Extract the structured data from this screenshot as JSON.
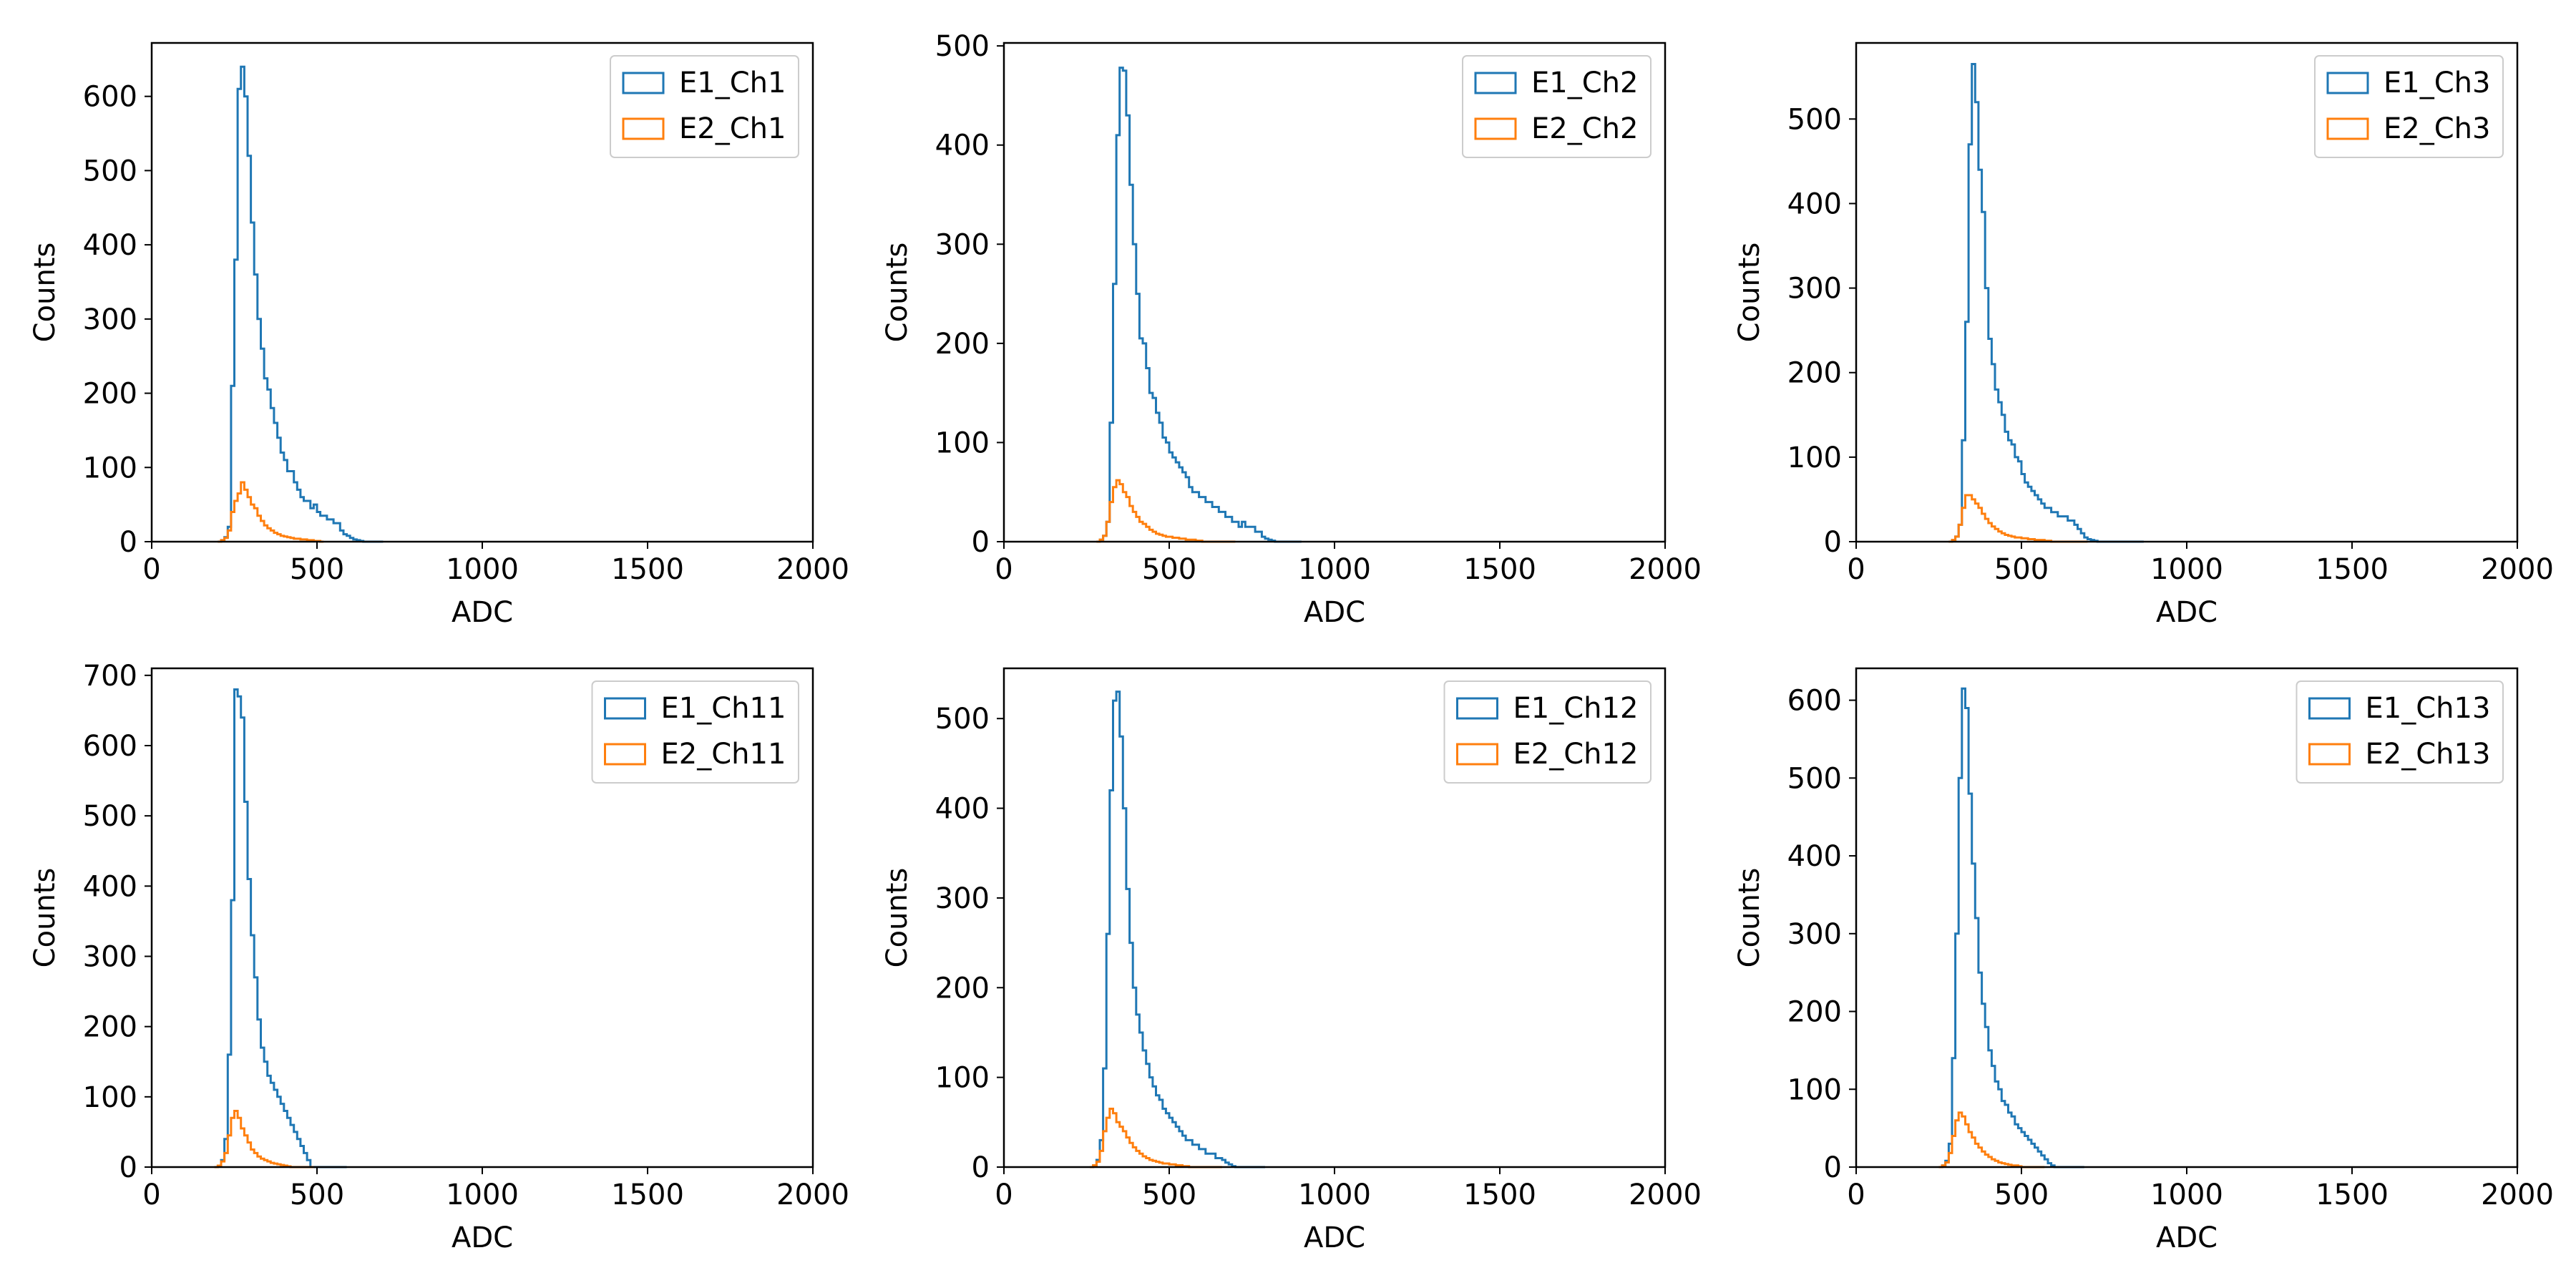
{
  "colors": {
    "e1": "#1f77b4",
    "e2": "#ff7f0e",
    "axis": "#000000",
    "legend_border": "#cccccc"
  },
  "chart_data": [
    {
      "type": "step-histogram",
      "xlabel": "ADC",
      "ylabel": "Counts",
      "xlim": [
        0,
        2000
      ],
      "ylim": [
        0,
        672
      ],
      "xticks": [
        0,
        500,
        1000,
        1500,
        2000
      ],
      "yticks": [
        0,
        100,
        200,
        300,
        400,
        500,
        600
      ],
      "bin_width": 10,
      "legend_position": "top-right",
      "series": [
        {
          "name": "E1_Ch1",
          "bin_start": 200,
          "values": [
            0,
            2,
            6,
            20,
            210,
            380,
            610,
            640,
            600,
            520,
            430,
            360,
            300,
            260,
            220,
            205,
            180,
            160,
            140,
            120,
            110,
            95,
            95,
            80,
            70,
            60,
            55,
            55,
            45,
            50,
            40,
            35,
            35,
            30,
            30,
            25,
            25,
            15,
            10,
            8,
            5,
            3,
            2,
            1,
            0,
            0,
            0,
            0,
            0,
            0
          ]
        },
        {
          "name": "E2_Ch1",
          "bin_start": 200,
          "values": [
            0,
            2,
            5,
            15,
            40,
            55,
            65,
            80,
            70,
            60,
            50,
            45,
            35,
            28,
            22,
            18,
            15,
            12,
            10,
            8,
            7,
            6,
            5,
            4,
            4,
            3,
            3,
            2,
            2,
            1,
            1,
            0
          ]
        }
      ]
    },
    {
      "type": "step-histogram",
      "xlabel": "ADC",
      "ylabel": "Counts",
      "xlim": [
        0,
        2000
      ],
      "ylim": [
        0,
        503
      ],
      "xticks": [
        0,
        500,
        1000,
        1500,
        2000
      ],
      "yticks": [
        0,
        100,
        200,
        300,
        400,
        500
      ],
      "bin_width": 10,
      "legend_position": "top-right",
      "series": [
        {
          "name": "E1_Ch2",
          "bin_start": 280,
          "values": [
            0,
            2,
            6,
            20,
            120,
            260,
            410,
            478,
            475,
            430,
            360,
            300,
            250,
            205,
            200,
            175,
            150,
            145,
            130,
            120,
            105,
            100,
            90,
            85,
            80,
            75,
            70,
            65,
            55,
            50,
            50,
            45,
            45,
            40,
            40,
            35,
            35,
            30,
            30,
            25,
            25,
            20,
            20,
            15,
            20,
            15,
            15,
            15,
            10,
            10,
            5,
            3,
            2,
            1,
            0,
            0,
            0,
            0,
            0,
            0,
            0,
            0
          ]
        },
        {
          "name": "E2_Ch2",
          "bin_start": 280,
          "values": [
            0,
            2,
            6,
            20,
            40,
            55,
            62,
            58,
            50,
            45,
            36,
            30,
            25,
            20,
            18,
            15,
            12,
            10,
            8,
            7,
            6,
            5,
            5,
            4,
            4,
            3,
            3,
            2,
            2,
            2,
            1,
            1,
            0,
            0,
            0,
            0,
            0,
            0,
            0,
            0,
            0,
            0
          ]
        }
      ]
    },
    {
      "type": "step-histogram",
      "xlabel": "ADC",
      "ylabel": "Counts",
      "xlim": [
        0,
        2000
      ],
      "ylim": [
        0,
        590
      ],
      "xticks": [
        0,
        500,
        1000,
        1500,
        2000
      ],
      "yticks": [
        0,
        100,
        200,
        300,
        400,
        500
      ],
      "bin_width": 10,
      "legend_position": "top-right",
      "series": [
        {
          "name": "E1_Ch3",
          "bin_start": 280,
          "values": [
            0,
            2,
            6,
            20,
            120,
            260,
            470,
            565,
            520,
            440,
            390,
            300,
            240,
            210,
            180,
            165,
            150,
            130,
            120,
            115,
            100,
            95,
            80,
            70,
            65,
            60,
            55,
            50,
            45,
            40,
            40,
            35,
            35,
            30,
            30,
            30,
            25,
            25,
            20,
            15,
            10,
            5,
            3,
            2,
            1,
            0,
            0,
            0,
            0,
            0,
            0,
            0,
            0,
            0,
            0,
            0,
            0,
            0,
            0
          ]
        },
        {
          "name": "E2_Ch3",
          "bin_start": 280,
          "values": [
            0,
            2,
            6,
            20,
            40,
            55,
            55,
            50,
            45,
            40,
            33,
            27,
            22,
            18,
            15,
            12,
            10,
            8,
            7,
            6,
            5,
            5,
            4,
            4,
            3,
            3,
            2,
            2,
            2,
            1,
            1,
            0,
            0,
            0,
            0,
            0,
            0,
            0,
            0,
            0,
            0,
            0
          ]
        }
      ]
    },
    {
      "type": "step-histogram",
      "xlabel": "ADC",
      "ylabel": "Counts",
      "xlim": [
        0,
        2000
      ],
      "ylim": [
        0,
        710
      ],
      "xticks": [
        0,
        500,
        1000,
        1500,
        2000
      ],
      "yticks": [
        0,
        100,
        200,
        300,
        400,
        500,
        600,
        700
      ],
      "bin_width": 10,
      "legend_position": "top-right",
      "series": [
        {
          "name": "E1_Ch11",
          "bin_start": 190,
          "values": [
            0,
            2,
            10,
            40,
            160,
            380,
            680,
            670,
            640,
            520,
            410,
            330,
            270,
            210,
            170,
            150,
            130,
            120,
            110,
            100,
            90,
            80,
            70,
            60,
            50,
            40,
            30,
            20,
            10,
            0,
            0,
            0,
            0,
            0,
            0,
            0,
            0,
            0,
            0,
            0
          ]
        },
        {
          "name": "E2_Ch11",
          "bin_start": 190,
          "values": [
            0,
            2,
            8,
            20,
            45,
            70,
            80,
            70,
            55,
            45,
            35,
            25,
            20,
            15,
            12,
            10,
            8,
            6,
            5,
            4,
            3,
            2,
            1,
            0,
            0,
            0,
            0,
            0,
            0,
            0
          ]
        }
      ]
    },
    {
      "type": "step-histogram",
      "xlabel": "ADC",
      "ylabel": "Counts",
      "xlim": [
        0,
        2000
      ],
      "ylim": [
        0,
        556
      ],
      "xticks": [
        0,
        500,
        1000,
        1500,
        2000
      ],
      "yticks": [
        0,
        100,
        200,
        300,
        400,
        500
      ],
      "bin_width": 10,
      "legend_position": "top-right",
      "series": [
        {
          "name": "E1_Ch12",
          "bin_start": 260,
          "values": [
            0,
            2,
            8,
            30,
            110,
            260,
            420,
            520,
            530,
            480,
            400,
            310,
            250,
            200,
            170,
            150,
            130,
            115,
            100,
            90,
            80,
            75,
            65,
            60,
            55,
            50,
            45,
            40,
            35,
            30,
            30,
            25,
            25,
            20,
            20,
            15,
            15,
            15,
            10,
            10,
            8,
            5,
            3,
            1,
            0,
            0,
            0,
            0,
            0,
            0,
            0,
            0,
            0
          ]
        },
        {
          "name": "E2_Ch12",
          "bin_start": 260,
          "values": [
            0,
            2,
            6,
            18,
            40,
            55,
            65,
            60,
            50,
            45,
            40,
            33,
            27,
            22,
            18,
            15,
            12,
            10,
            8,
            7,
            6,
            5,
            4,
            4,
            3,
            3,
            2,
            2,
            1,
            1,
            0,
            0,
            0,
            0,
            0,
            0,
            0,
            0,
            0,
            0
          ]
        }
      ]
    },
    {
      "type": "step-histogram",
      "xlabel": "ADC",
      "ylabel": "Counts",
      "xlim": [
        0,
        2000
      ],
      "ylim": [
        0,
        641
      ],
      "xticks": [
        0,
        500,
        1000,
        1500,
        2000
      ],
      "yticks": [
        0,
        100,
        200,
        300,
        400,
        500,
        600
      ],
      "bin_width": 10,
      "legend_position": "top-right",
      "series": [
        {
          "name": "E1_Ch13",
          "bin_start": 250,
          "values": [
            0,
            2,
            8,
            30,
            140,
            300,
            500,
            615,
            590,
            480,
            390,
            320,
            250,
            210,
            180,
            150,
            130,
            110,
            100,
            85,
            80,
            70,
            65,
            55,
            50,
            45,
            40,
            35,
            30,
            25,
            20,
            15,
            10,
            5,
            2,
            0,
            0,
            0,
            0,
            0,
            0,
            0,
            0,
            0
          ]
        },
        {
          "name": "E2_Ch13",
          "bin_start": 250,
          "values": [
            0,
            2,
            6,
            18,
            40,
            60,
            70,
            65,
            55,
            45,
            38,
            30,
            25,
            20,
            16,
            13,
            10,
            8,
            6,
            5,
            4,
            3,
            2,
            2,
            1,
            0,
            0,
            0,
            0,
            0,
            0,
            0
          ]
        }
      ]
    }
  ]
}
